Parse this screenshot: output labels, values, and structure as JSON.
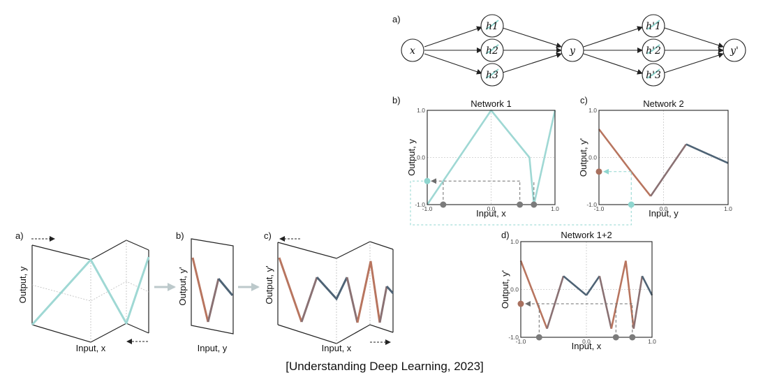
{
  "caption": "[Understanding Deep Learning, 2023]",
  "colors": {
    "teal": "#9fd8d4",
    "brown": "#b8755f",
    "mauve": "#8a7173",
    "slate": "#4e6375",
    "gray_dot": "#7b7b7b",
    "brown_dot": "#a8705e",
    "teal_dot": "#8fd6cf",
    "guide": "#6e6e6e",
    "grid": "#c9c9c9"
  },
  "network_diagram": {
    "panel_label": "a)",
    "input_node": "x",
    "hidden1": [
      "h1",
      "h2",
      "h3"
    ],
    "middle_node": "y",
    "hidden2": [
      "h'1",
      "h'2",
      "h'3"
    ],
    "output_node": "y'"
  },
  "fold_illustration": {
    "panels": [
      {
        "label": "a)",
        "xlabel": "Input, x",
        "ylabel": "Output, y"
      },
      {
        "label": "b)",
        "xlabel": "Input, y",
        "ylabel": "Output, y'"
      },
      {
        "label": "c)",
        "xlabel": "Input, x",
        "ylabel": "Output, y'"
      }
    ]
  },
  "chart_data": [
    {
      "panel_label": "b)",
      "type": "line",
      "title": "Network 1",
      "xlabel": "Input, x",
      "ylabel": "Output, y",
      "xlim": [
        -1.0,
        1.0
      ],
      "ylim": [
        -1.0,
        1.0
      ],
      "x_ticks": [
        "-1.0",
        "0.0",
        "1.0"
      ],
      "y_ticks": [
        "-1.0",
        "0.0",
        "1.0"
      ],
      "grid": true,
      "series": [
        {
          "x": [
            -1.0,
            0.0,
            0.6,
            0.67,
            1.0
          ],
          "y": [
            -1.0,
            1.0,
            0.0,
            -1.0,
            1.0
          ],
          "color": "#9fd8d4"
        }
      ],
      "marked_output": {
        "y": -0.5
      },
      "marked_inputs": [
        -0.75,
        0.45,
        0.67
      ]
    },
    {
      "panel_label": "c)",
      "type": "line",
      "title": "Network 2",
      "xlabel": "Input, y",
      "ylabel": "Output, y'",
      "xlim": [
        -1.0,
        1.0
      ],
      "ylim": [
        -1.0,
        1.0
      ],
      "x_ticks": [
        "-1.0",
        "0.0",
        "1.0"
      ],
      "y_ticks": [
        "-1.0",
        "0.0",
        "1.0"
      ],
      "grid": true,
      "series": [
        {
          "x": [
            -1.0,
            -0.5,
            -0.2
          ],
          "y": [
            0.6,
            -0.3,
            -0.82
          ],
          "color": "#b8755f"
        },
        {
          "x": [
            -0.2,
            0.35
          ],
          "y": [
            -0.82,
            0.28
          ],
          "color": "#8a7173"
        },
        {
          "x": [
            0.35,
            1.0
          ],
          "y": [
            0.28,
            -0.12
          ],
          "color": "#4e6375"
        }
      ],
      "marked_input": {
        "x": -0.5
      },
      "marked_output": {
        "y": -0.3
      }
    },
    {
      "panel_label": "d)",
      "type": "line",
      "title": "Network 1+2",
      "xlabel": "Input, x",
      "ylabel": "Output, y'",
      "xlim": [
        -1.0,
        1.0
      ],
      "ylim": [
        -1.0,
        1.0
      ],
      "x_ticks": [
        "-1.0",
        "0.0",
        "1.0"
      ],
      "y_ticks": [
        "-1.0",
        "0.0",
        "1.0"
      ],
      "grid": true,
      "series": [
        {
          "x": [
            -1.0,
            -0.6
          ],
          "y": [
            0.6,
            -0.82
          ],
          "color": "#b8755f"
        },
        {
          "x": [
            -0.6,
            -0.35
          ],
          "y": [
            -0.82,
            0.28
          ],
          "color": "#8a7173"
        },
        {
          "x": [
            -0.35,
            0.0
          ],
          "y": [
            0.28,
            -0.12
          ],
          "color": "#4e6375"
        },
        {
          "x": [
            0.0,
            0.2
          ],
          "y": [
            -0.12,
            0.28
          ],
          "color": "#4e6375"
        },
        {
          "x": [
            0.2,
            0.38
          ],
          "y": [
            0.28,
            -0.82
          ],
          "color": "#8a7173"
        },
        {
          "x": [
            0.38,
            0.6
          ],
          "y": [
            -0.82,
            0.6
          ],
          "color": "#b8755f"
        },
        {
          "x": [
            0.6,
            0.72
          ],
          "y": [
            0.6,
            -0.82
          ],
          "color": "#b8755f"
        },
        {
          "x": [
            0.72,
            0.85
          ],
          "y": [
            -0.82,
            0.28
          ],
          "color": "#8a7173"
        },
        {
          "x": [
            0.85,
            1.0
          ],
          "y": [
            0.28,
            -0.12
          ],
          "color": "#4e6375"
        }
      ],
      "marked_output": {
        "y": -0.3
      },
      "marked_inputs": [
        -0.72,
        0.45,
        0.7
      ]
    }
  ]
}
